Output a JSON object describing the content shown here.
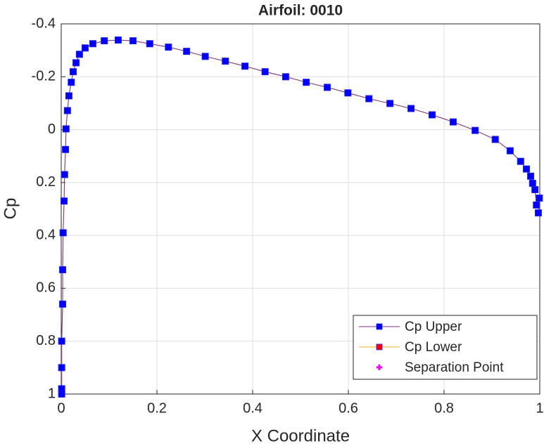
{
  "chart_data": {
    "type": "line",
    "title": "Airfoil: 0010",
    "x_label": "X Coordinate",
    "y_label": "Cp",
    "x": [
      0.001,
      0.001,
      0.001,
      0.001,
      0.003,
      0.003,
      0.004,
      0.006,
      0.007,
      0.009,
      0.01,
      0.013,
      0.016,
      0.021,
      0.025,
      0.031,
      0.038,
      0.05,
      0.066,
      0.09,
      0.119,
      0.15,
      0.185,
      0.224,
      0.262,
      0.301,
      0.343,
      0.384,
      0.426,
      0.469,
      0.512,
      0.556,
      0.599,
      0.643,
      0.687,
      0.731,
      0.775,
      0.819,
      0.865,
      0.907,
      0.938,
      0.96,
      0.972,
      0.981,
      0.985,
      0.99,
      0.993,
      0.999,
      0.997
    ],
    "series": [
      {
        "name": "Cp Upper",
        "color": "#7e2f8e",
        "marker": "square",
        "marker_color": "#0000ff",
        "values": [
          1.0,
          0.98,
          0.9,
          0.8,
          0.66,
          0.53,
          0.39,
          0.27,
          0.17,
          0.075,
          -0.003,
          -0.072,
          -0.128,
          -0.179,
          -0.219,
          -0.253,
          -0.285,
          -0.309,
          -0.325,
          -0.336,
          -0.339,
          -0.336,
          -0.325,
          -0.312,
          -0.296,
          -0.277,
          -0.259,
          -0.24,
          -0.219,
          -0.2,
          -0.179,
          -0.16,
          -0.139,
          -0.117,
          -0.099,
          -0.08,
          -0.056,
          -0.029,
          0.003,
          0.037,
          0.08,
          0.12,
          0.149,
          0.176,
          0.203,
          0.227,
          0.285,
          0.259,
          0.315
        ]
      },
      {
        "name": "Cp Lower",
        "color": "#edb120",
        "marker": "square",
        "marker_color": "#ff0000",
        "values": [
          1.0,
          0.98,
          0.9,
          0.8,
          0.66,
          0.53,
          0.39,
          0.27,
          0.17,
          0.075,
          -0.003,
          -0.072,
          -0.128,
          -0.179,
          -0.219,
          -0.253,
          -0.285,
          -0.309,
          -0.325,
          -0.336,
          -0.339,
          -0.336,
          -0.325,
          -0.312,
          -0.296,
          -0.277,
          -0.259,
          -0.24,
          -0.219,
          -0.2,
          -0.179,
          -0.16,
          -0.139,
          -0.117,
          -0.099,
          -0.08,
          -0.056,
          -0.029,
          0.003,
          0.037,
          0.08,
          0.12,
          0.149,
          0.176,
          0.203,
          0.227,
          0.285,
          0.259,
          0.315
        ]
      },
      {
        "name": "Separation Point",
        "marker": "plus",
        "marker_color": "#ff00ff",
        "x": [
          0.731
        ],
        "values": [
          -0.08
        ]
      }
    ],
    "xlim": [
      0,
      1
    ],
    "xticks": [
      0,
      0.2,
      0.4,
      0.6,
      0.8,
      1
    ],
    "ylim": [
      -0.4,
      1
    ],
    "yticks": [
      -0.4,
      -0.2,
      0,
      0.2,
      0.4,
      0.6,
      0.8,
      1
    ],
    "y_reversed": true,
    "grid": true,
    "legend": "southeast"
  }
}
